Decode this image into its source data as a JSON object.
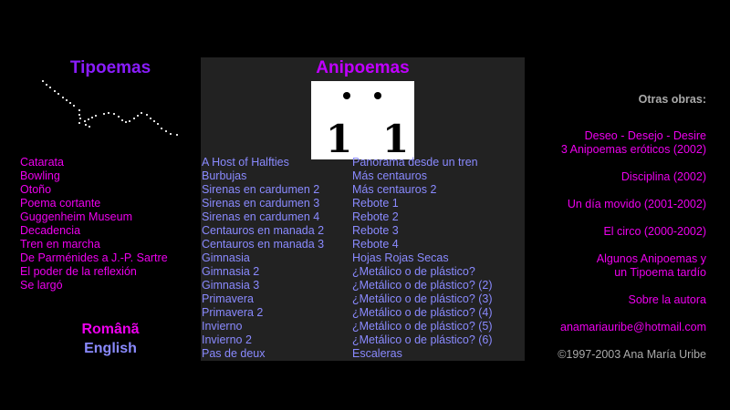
{
  "tipoemas": {
    "title": "Tipoemas",
    "items": [
      "Catarata",
      "Bowling",
      "Otoño",
      "Poema cortante",
      "Guggenheim Museum",
      "Decadencia",
      "Tren en marcha",
      "De Parménides a J.-P. Sartre",
      "El poder de la reflexión",
      "Se largó"
    ]
  },
  "languages": {
    "romana": "Românã",
    "english": "English"
  },
  "anipoemas": {
    "title": "Anipoemas",
    "col1": [
      "A Host of Halfties",
      "Burbujas",
      "Sirenas en cardumen 2",
      "Sirenas en cardumen 3",
      "Sirenas en cardumen 4",
      "Centauros en manada 2",
      "Centauros en manada 3",
      "Gimnasia",
      "Gimnasia 2",
      "Gimnasia 3",
      "Primavera",
      "Primavera 2",
      "Invierno",
      "Invierno 2",
      "Pas de deux"
    ],
    "col2": [
      "Panorama desde un tren",
      "Más centauros",
      "Más centauros 2",
      "Rebote 1",
      "Rebote 2",
      "Rebote 3",
      "Rebote 4",
      "Hojas Rojas Secas",
      "¿Metálico o de plástico?",
      "¿Metálico o de plástico? (2)",
      "¿Metálico o de plástico? (3)",
      "¿Metálico o de plástico? (4)",
      "¿Metálico o de plástico? (5)",
      "¿Metálico o de plástico? (6)",
      "Escaleras"
    ]
  },
  "otras": {
    "title": "Otras obras:",
    "items": [
      {
        "line1": "Deseo - Desejo - Desire",
        "line2": "3 Anipoemas eróticos (2002)"
      },
      {
        "line1": "Disciplina (2002)"
      },
      {
        "line1": "Un día movido (2001-2002)"
      },
      {
        "line1": "El circo (2000-2002)"
      },
      {
        "line1": "Algunos Anipoemas y",
        "line2": "un Tipoema tardío"
      },
      {
        "line1": "Sobre la autora"
      },
      {
        "line1": "anamariauribe@hotmail.com"
      }
    ],
    "copyright": "©1997-2003 Ana María Uribe"
  },
  "colors": {
    "magenta": "#ee00ee",
    "blue": "#8a8aff",
    "purple": "#8a1cff",
    "panel": "#222222"
  }
}
